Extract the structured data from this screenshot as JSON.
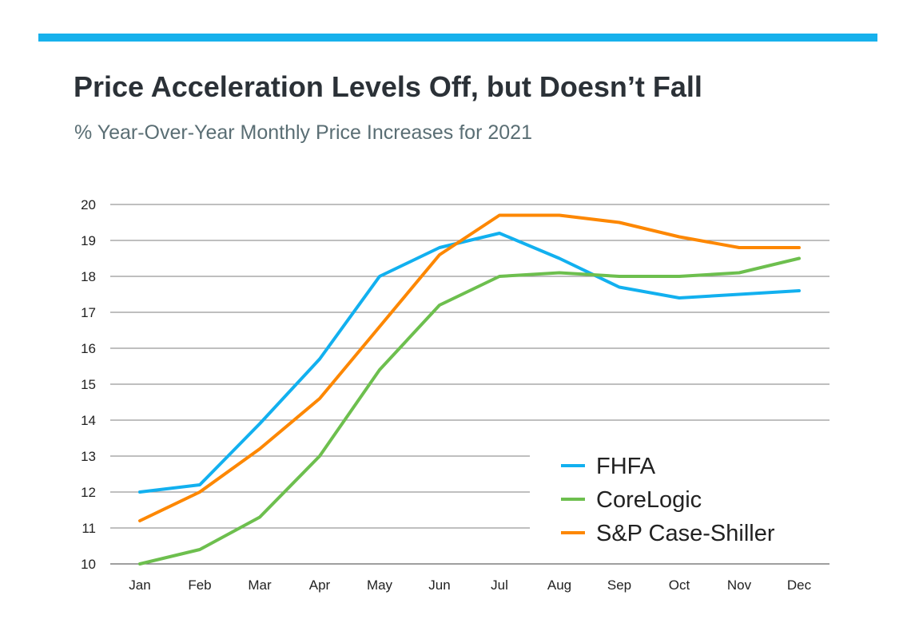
{
  "header": {
    "title": "Price Acceleration Levels Off, but Doesn’t Fall",
    "subtitle": "% Year-Over-Year Monthly Price Increases for 2021",
    "accent_color": "#17b1ec"
  },
  "chart_data": {
    "type": "line",
    "title": "Price Acceleration Levels Off, but Doesn’t Fall",
    "subtitle": "% Year-Over-Year Monthly Price Increases for 2021",
    "categories": [
      "Jan",
      "Feb",
      "Mar",
      "Apr",
      "May",
      "Jun",
      "Jul",
      "Aug",
      "Sep",
      "Oct",
      "Nov",
      "Dec"
    ],
    "ylim": [
      10,
      20
    ],
    "yticks": [
      "10",
      "11",
      "12",
      "13",
      "14",
      "15",
      "16",
      "17",
      "18",
      "19",
      "20"
    ],
    "grid": true,
    "legend": "bottom-right",
    "series": [
      {
        "name": "FHFA",
        "color": "#12b0ef",
        "values": [
          12.0,
          12.2,
          13.9,
          15.7,
          18.0,
          18.8,
          19.2,
          18.5,
          17.7,
          17.4,
          17.5,
          17.6
        ]
      },
      {
        "name": "CoreLogic",
        "color": "#6dbf4e",
        "values": [
          10.0,
          10.4,
          11.3,
          13.0,
          15.4,
          17.2,
          18.0,
          18.1,
          18.0,
          18.0,
          18.1,
          18.5
        ]
      },
      {
        "name": "S&P Case-Shiller",
        "color": "#fd8700",
        "values": [
          11.2,
          12.0,
          13.2,
          14.6,
          16.6,
          18.6,
          19.7,
          19.7,
          19.5,
          19.1,
          18.8,
          18.8
        ]
      }
    ]
  }
}
